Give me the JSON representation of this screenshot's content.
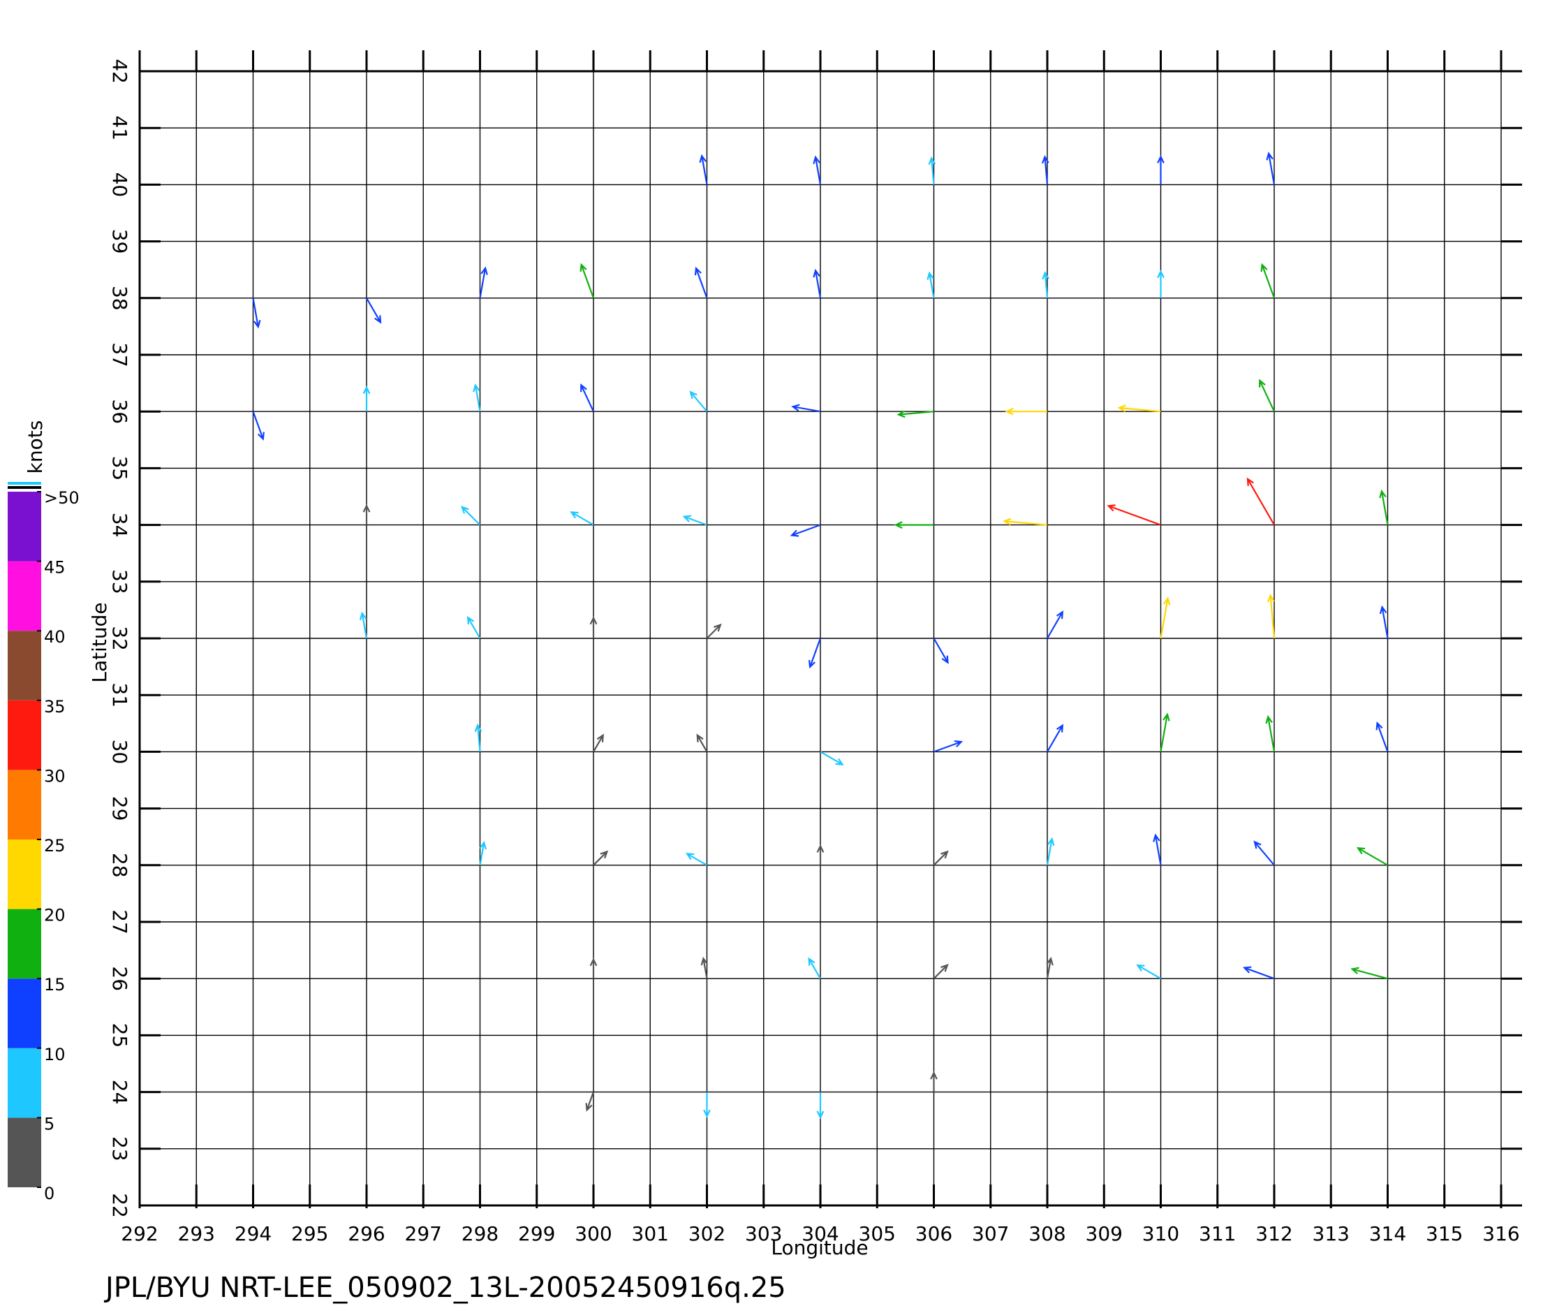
{
  "chart_data": {
    "type": "quiver",
    "title": "JPL/BYU  NRT-LEE_050902_13L-20052450916q.25",
    "xlabel": "Longitude",
    "ylabel": "Latitude",
    "xlim": [
      292,
      316
    ],
    "ylim": [
      22,
      42
    ],
    "xticks": [
      292,
      293,
      294,
      295,
      296,
      297,
      298,
      299,
      300,
      301,
      302,
      303,
      304,
      305,
      306,
      307,
      308,
      309,
      310,
      311,
      312,
      313,
      314,
      315,
      316
    ],
    "yticks": [
      22,
      23,
      24,
      25,
      26,
      27,
      28,
      29,
      30,
      31,
      32,
      33,
      34,
      35,
      36,
      37,
      38,
      39,
      40,
      41,
      42
    ],
    "grid": true,
    "vectors": {
      "lon": [
        302,
        304,
        306,
        308,
        310,
        312,
        294,
        296,
        298,
        300,
        302,
        304,
        306,
        308,
        310,
        312,
        294,
        296,
        298,
        300,
        302,
        304,
        306,
        308,
        310,
        312,
        296,
        298,
        300,
        302,
        304,
        306,
        308,
        310,
        312,
        314,
        296,
        298,
        300,
        302,
        304,
        306,
        308,
        310,
        312,
        314,
        298,
        300,
        302,
        304,
        306,
        308,
        310,
        312,
        314,
        298,
        300,
        302,
        304,
        306,
        308,
        310,
        312,
        314,
        300,
        302,
        304,
        306,
        308,
        310,
        312,
        314,
        300,
        302,
        304,
        306
      ],
      "lat": [
        40,
        40,
        40,
        40,
        40,
        40,
        38,
        38,
        38,
        38,
        38,
        38,
        38,
        38,
        38,
        38,
        36,
        36,
        36,
        36,
        36,
        36,
        36,
        36,
        36,
        36,
        34,
        34,
        34,
        34,
        34,
        34,
        34,
        34,
        34,
        34,
        32,
        32,
        32,
        32,
        32,
        32,
        32,
        32,
        32,
        32,
        30,
        30,
        30,
        30,
        30,
        30,
        30,
        30,
        30,
        28,
        28,
        28,
        28,
        28,
        28,
        28,
        28,
        28,
        26,
        26,
        26,
        26,
        26,
        26,
        26,
        26,
        24,
        24,
        24,
        24
      ],
      "speed": [
        11,
        10,
        9,
        10,
        10,
        13,
        11,
        10,
        12,
        16,
        13,
        10,
        8,
        8,
        9,
        16,
        11,
        7,
        9,
        11,
        8,
        10,
        16,
        20,
        21,
        15,
        3,
        8,
        8,
        7,
        12,
        18,
        22,
        32,
        30,
        15,
        8,
        7,
        4,
        3,
        12,
        10,
        12,
        20,
        22,
        13,
        9,
        3,
        3,
        8,
        11,
        12,
        18,
        16,
        12,
        6,
        3,
        6,
        3,
        3,
        9,
        12,
        12,
        15,
        3,
        4,
        6,
        3,
        4,
        9,
        13,
        17,
        3,
        7,
        8,
        3
      ],
      "direction": [
        100,
        100,
        95,
        95,
        90,
        100,
        280,
        300,
        80,
        110,
        110,
        100,
        100,
        95,
        90,
        110,
        290,
        90,
        100,
        115,
        130,
        170,
        185,
        180,
        175,
        115,
        90,
        135,
        150,
        160,
        200,
        180,
        175,
        160,
        120,
        100,
        100,
        120,
        90,
        45,
        250,
        300,
        60,
        80,
        95,
        100,
        95,
        60,
        120,
        330,
        20,
        60,
        80,
        100,
        110,
        80,
        45,
        150,
        90,
        45,
        80,
        100,
        130,
        150,
        90,
        100,
        120,
        45,
        80,
        150,
        160,
        165,
        250,
        270,
        270,
        90
      ]
    },
    "colorbar": {
      "label": "knots",
      "lim": [
        0,
        50
      ],
      "ticks": [
        0,
        5,
        10,
        15,
        20,
        25,
        30,
        35,
        40,
        45,
        {
          "value": 50,
          "label": ">50"
        }
      ],
      "colors": [
        "#555555",
        "#1ec8ff",
        "#1040ff",
        "#10b010",
        "#ffd800",
        "#ff7a00",
        "#ff1a10",
        "#8a4a30",
        "#ff10e0",
        "#7a10d0"
      ]
    }
  }
}
